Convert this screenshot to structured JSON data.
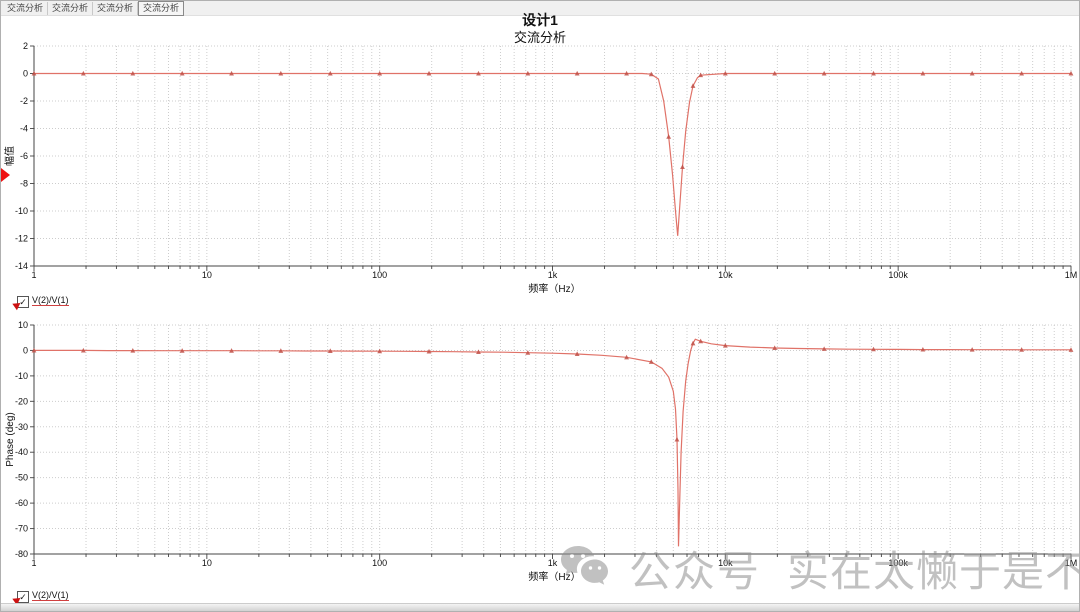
{
  "window": {
    "tabs": [
      {
        "label": "交流分析"
      },
      {
        "label": "交流分析"
      },
      {
        "label": "交流分析"
      },
      {
        "label": "交流分析"
      }
    ],
    "selected_tab": 3
  },
  "header": {
    "title": "设计1",
    "subtitle": "交流分析"
  },
  "legend": {
    "label": "V(2)/V(1)",
    "check": "✓",
    "trace_color": "#d04040"
  },
  "watermark": {
    "icon": "wechat-icon",
    "text1": "公众号",
    "text2": "实在太懒于是不想取名"
  },
  "chart_data": [
    {
      "type": "line",
      "title": "交流分析",
      "xlabel": "频率（Hz）",
      "ylabel": "幅值",
      "x_scale": "log",
      "xlim": [
        1,
        1000000
      ],
      "ylim": [
        -14,
        2
      ],
      "y_ticks": [
        2,
        0,
        -2,
        -4,
        -6,
        -8,
        -10,
        -12,
        -14
      ],
      "x_ticks": [
        {
          "v": 1,
          "l": "1"
        },
        {
          "v": 10,
          "l": "10"
        },
        {
          "v": 100,
          "l": "100"
        },
        {
          "v": 1000,
          "l": "1k"
        },
        {
          "v": 10000,
          "l": "10k"
        },
        {
          "v": 100000,
          "l": "100k"
        },
        {
          "v": 1000000,
          "l": "1M"
        }
      ],
      "grid": true,
      "legend_position": "below-left",
      "series": [
        {
          "name": "V(2)/V(1)",
          "color": "#e07268",
          "marker_color": "#c05048",
          "points": [
            [
              1,
              0,
              1
            ],
            [
              1.39,
              0,
              0
            ],
            [
              1.93,
              0,
              1
            ],
            [
              2.68,
              0,
              0
            ],
            [
              3.73,
              0,
              1
            ],
            [
              5.18,
              0,
              0
            ],
            [
              7.2,
              0,
              1
            ],
            [
              10,
              0,
              0
            ],
            [
              13.9,
              0,
              1
            ],
            [
              19.3,
              0,
              0
            ],
            [
              26.8,
              0,
              1
            ],
            [
              37.3,
              0,
              0
            ],
            [
              51.8,
              0,
              1
            ],
            [
              72,
              0,
              0
            ],
            [
              100,
              0,
              1
            ],
            [
              139,
              0,
              0
            ],
            [
              193,
              0,
              1
            ],
            [
              268,
              0,
              0
            ],
            [
              373,
              0,
              1
            ],
            [
              518,
              0,
              0
            ],
            [
              720,
              0,
              1
            ],
            [
              1000,
              0,
              0
            ],
            [
              1389,
              0,
              1
            ],
            [
              1931,
              0,
              0
            ],
            [
              2683,
              0,
              1
            ],
            [
              3300,
              0,
              0
            ],
            [
              3728,
              -0.05,
              1
            ],
            [
              4100,
              -0.4,
              0
            ],
            [
              4400,
              -2,
              0
            ],
            [
              4700,
              -4.6,
              1
            ],
            [
              4950,
              -7.4,
              0
            ],
            [
              5150,
              -10,
              0
            ],
            [
              5300,
              -11.8,
              0
            ],
            [
              5450,
              -9.6,
              0
            ],
            [
              5650,
              -6.8,
              1
            ],
            [
              5900,
              -4.2,
              0
            ],
            [
              6200,
              -2.1,
              0
            ],
            [
              6500,
              -0.9,
              1
            ],
            [
              6900,
              -0.3,
              0
            ],
            [
              7200,
              -0.12,
              1
            ],
            [
              10000,
              0,
              1
            ],
            [
              13900,
              0,
              0
            ],
            [
              19300,
              0,
              1
            ],
            [
              26800,
              0,
              0
            ],
            [
              37300,
              0,
              1
            ],
            [
              51800,
              0,
              0
            ],
            [
              72000,
              0,
              1
            ],
            [
              100000,
              0,
              0
            ],
            [
              139000,
              0,
              1
            ],
            [
              193000,
              0,
              0
            ],
            [
              268000,
              0,
              1
            ],
            [
              373000,
              0,
              0
            ],
            [
              518000,
              0,
              1
            ],
            [
              720000,
              0,
              0
            ],
            [
              1000000,
              0,
              1
            ]
          ]
        }
      ]
    },
    {
      "type": "line",
      "title": "",
      "xlabel": "频率（Hz）",
      "ylabel": "Phase (deg)",
      "x_scale": "log",
      "xlim": [
        1,
        1000000
      ],
      "ylim": [
        -80,
        10
      ],
      "y_ticks": [
        10,
        0,
        -10,
        -20,
        -30,
        -40,
        -50,
        -60,
        -70,
        -80
      ],
      "x_ticks": [
        {
          "v": 1,
          "l": "1"
        },
        {
          "v": 10,
          "l": "10"
        },
        {
          "v": 100,
          "l": "100"
        },
        {
          "v": 1000,
          "l": "1k"
        },
        {
          "v": 10000,
          "l": "10k"
        },
        {
          "v": 100000,
          "l": "100k"
        },
        {
          "v": 1000000,
          "l": "1M"
        }
      ],
      "grid": true,
      "legend_position": "below-left",
      "series": [
        {
          "name": "V(2)/V(1)",
          "color": "#e07268",
          "marker_color": "#c05048",
          "points": [
            [
              1,
              0,
              1
            ],
            [
              1.39,
              0,
              0
            ],
            [
              1.93,
              0,
              1
            ],
            [
              2.68,
              -0.05,
              0
            ],
            [
              3.73,
              -0.05,
              1
            ],
            [
              5.18,
              -0.1,
              0
            ],
            [
              7.2,
              -0.1,
              1
            ],
            [
              10,
              -0.1,
              0
            ],
            [
              13.9,
              -0.1,
              1
            ],
            [
              19.3,
              -0.15,
              0
            ],
            [
              26.8,
              -0.15,
              1
            ],
            [
              37.3,
              -0.2,
              0
            ],
            [
              51.8,
              -0.2,
              1
            ],
            [
              72,
              -0.25,
              0
            ],
            [
              100,
              -0.3,
              1
            ],
            [
              139,
              -0.35,
              0
            ],
            [
              193,
              -0.4,
              1
            ],
            [
              268,
              -0.5,
              0
            ],
            [
              373,
              -0.6,
              1
            ],
            [
              518,
              -0.7,
              0
            ],
            [
              720,
              -0.9,
              1
            ],
            [
              1000,
              -1.1,
              0
            ],
            [
              1389,
              -1.4,
              1
            ],
            [
              1931,
              -1.9,
              0
            ],
            [
              2683,
              -2.7,
              1
            ],
            [
              3728,
              -4.5,
              1
            ],
            [
              4300,
              -7,
              0
            ],
            [
              4700,
              -10.5,
              0
            ],
            [
              5000,
              -16,
              0
            ],
            [
              5150,
              -23,
              0
            ],
            [
              5250,
              -35,
              1
            ],
            [
              5320,
              -55,
              0
            ],
            [
              5360,
              -77,
              0
            ],
            [
              5450,
              -58,
              0
            ],
            [
              5550,
              -40,
              0
            ],
            [
              5700,
              -24,
              0
            ],
            [
              5900,
              -12,
              0
            ],
            [
              6100,
              -5,
              0
            ],
            [
              6300,
              0,
              0
            ],
            [
              6500,
              2.8,
              1
            ],
            [
              6700,
              4.4,
              0
            ],
            [
              7200,
              3.6,
              1
            ],
            [
              8300,
              2.6,
              0
            ],
            [
              10000,
              1.9,
              1
            ],
            [
              13900,
              1.3,
              0
            ],
            [
              19300,
              0.95,
              1
            ],
            [
              26800,
              0.75,
              0
            ],
            [
              37300,
              0.6,
              1
            ],
            [
              51800,
              0.5,
              0
            ],
            [
              72000,
              0.45,
              1
            ],
            [
              100000,
              0.4,
              0
            ],
            [
              139000,
              0.35,
              1
            ],
            [
              193000,
              0.32,
              0
            ],
            [
              268000,
              0.3,
              1
            ],
            [
              373000,
              0.28,
              0
            ],
            [
              518000,
              0.26,
              1
            ],
            [
              720000,
              0.25,
              0
            ],
            [
              1000000,
              0.24,
              1
            ]
          ]
        }
      ]
    }
  ]
}
